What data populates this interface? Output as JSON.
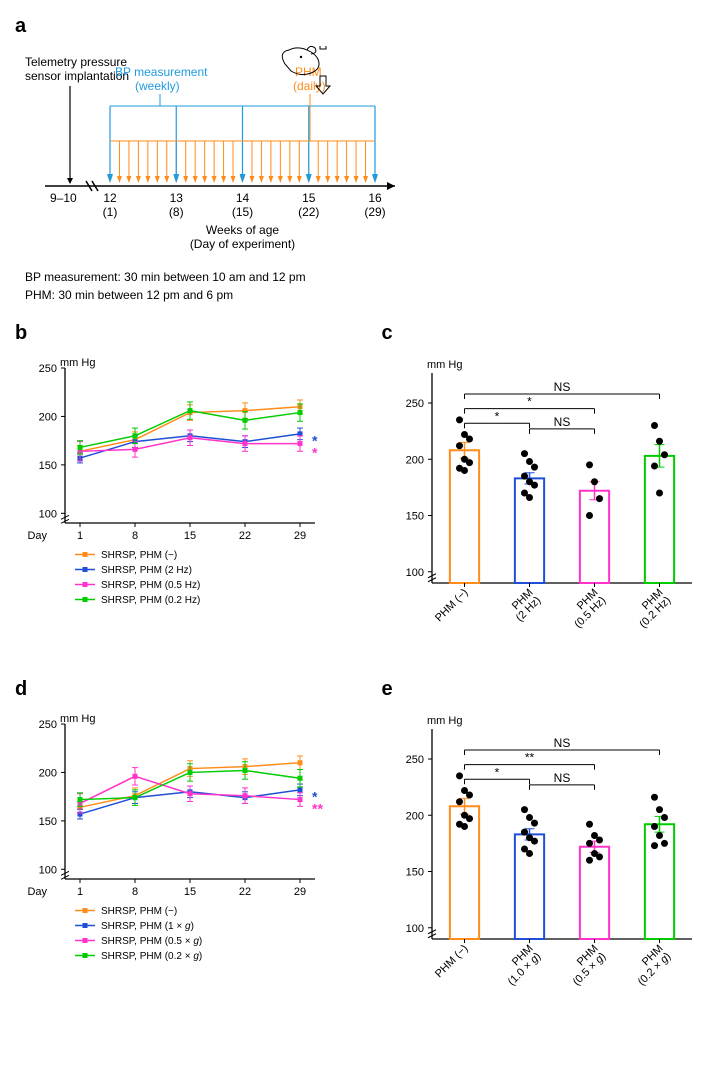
{
  "panelA": {
    "label": "a",
    "telemetry_label": "Telemetry pressure\nsensor implantation",
    "bp_label": "BP measurement\n(weekly)",
    "bp_color": "#1f9bdf",
    "phm_label": "PHM\n(daily)",
    "phm_color": "#ff8c1a",
    "start_range": "9–10",
    "weeks": [
      "12",
      "13",
      "14",
      "15",
      "16"
    ],
    "days": [
      "(1)",
      "(8)",
      "(15)",
      "(22)",
      "(29)"
    ],
    "xaxis_label1": "Weeks of age",
    "xaxis_label2": "(Day of experiment)",
    "note1": "BP measurement: 30 min between 10 am and 12 pm",
    "note2": "PHM: 30 min between 12 pm and 6 pm"
  },
  "panelB": {
    "label": "b",
    "ytitle": "mm Hg",
    "ylim": [
      0,
      250
    ],
    "yticks": [
      100,
      150,
      200,
      250
    ],
    "xlabel": "Day",
    "xticks": [
      1,
      8,
      15,
      22,
      29
    ],
    "series": [
      {
        "name": "SHRSP, PHM (−)",
        "color": "#ff8c1a",
        "y": [
          164,
          176,
          204,
          206,
          210
        ],
        "err": [
          6,
          8,
          8,
          8,
          7
        ]
      },
      {
        "name": "SHRSP, PHM (2 Hz)",
        "color": "#1f4fd6",
        "y": [
          157,
          174,
          180,
          174,
          182
        ],
        "err": [
          5,
          6,
          6,
          6,
          6
        ]
      },
      {
        "name": "SHRSP, PHM (0.5 Hz)",
        "color": "#ff33cc",
        "y": [
          164,
          166,
          178,
          172,
          172
        ],
        "err": [
          10,
          8,
          8,
          8,
          8
        ]
      },
      {
        "name": "SHRSP, PHM (0.2 Hz)",
        "color": "#00cc00",
        "y": [
          168,
          180,
          206,
          196,
          204
        ],
        "err": [
          7,
          8,
          9,
          9,
          9
        ]
      }
    ],
    "sig_markers": [
      {
        "text": "*",
        "color": "#1f4fd6"
      },
      {
        "text": "*",
        "color": "#ff33cc"
      }
    ]
  },
  "panelC": {
    "label": "c",
    "ytitle": "mm Hg",
    "ylim": [
      0,
      250
    ],
    "yticks": [
      100,
      150,
      200,
      250
    ],
    "bars": [
      {
        "xlabel": "PHM (−)",
        "color": "#ff8c1a",
        "mean": 208,
        "err": 7,
        "points": [
          235,
          222,
          218,
          212,
          200,
          197,
          192,
          190
        ]
      },
      {
        "xlabel": "PHM\n(2 Hz)",
        "color": "#1f4fd6",
        "mean": 183,
        "err": 5,
        "points": [
          205,
          198,
          193,
          185,
          180,
          177,
          170,
          166
        ]
      },
      {
        "xlabel": "PHM\n(0.5 Hz)",
        "color": "#ff33cc",
        "mean": 172,
        "err": 8,
        "points": [
          195,
          180,
          165,
          150
        ]
      },
      {
        "xlabel": "PHM\n(0.2 Hz)",
        "color": "#00cc00",
        "mean": 203,
        "err": 10,
        "points": [
          230,
          216,
          204,
          194,
          170
        ]
      }
    ],
    "sig_brackets": [
      {
        "from": 0,
        "to": 1,
        "y": 232,
        "label": "*"
      },
      {
        "from": 1,
        "to": 2,
        "y": 227,
        "label": "NS"
      },
      {
        "from": 0,
        "to": 2,
        "y": 245,
        "label": "*"
      },
      {
        "from": 0,
        "to": 3,
        "y": 258,
        "label": "NS"
      }
    ]
  },
  "panelD": {
    "label": "d",
    "ytitle": "mm Hg",
    "ylim": [
      0,
      250
    ],
    "yticks": [
      100,
      150,
      200,
      250
    ],
    "xlabel": "Day",
    "xticks": [
      1,
      8,
      15,
      22,
      29
    ],
    "series": [
      {
        "name": "SHRSP, PHM (−)",
        "color": "#ff8c1a",
        "y": [
          164,
          176,
          204,
          206,
          210
        ],
        "err": [
          6,
          8,
          8,
          8,
          7
        ]
      },
      {
        "name": "SHRSP, PHM (1 × g)",
        "color": "#1f4fd6",
        "y": [
          157,
          174,
          180,
          174,
          182
        ],
        "err": [
          5,
          6,
          6,
          6,
          6
        ]
      },
      {
        "name": "SHRSP, PHM (0.5 × g)",
        "color": "#ff33cc",
        "y": [
          168,
          196,
          178,
          176,
          172
        ],
        "err": [
          10,
          9,
          8,
          8,
          7
        ]
      },
      {
        "name": "SHRSP, PHM (0.2 × g)",
        "color": "#00cc00",
        "y": [
          172,
          174,
          200,
          202,
          194
        ],
        "err": [
          7,
          8,
          9,
          9,
          9
        ]
      }
    ],
    "sig_markers": [
      {
        "text": "*",
        "color": "#1f4fd6"
      },
      {
        "text": "**",
        "color": "#ff33cc"
      }
    ]
  },
  "panelE": {
    "label": "e",
    "ytitle": "mm Hg",
    "ylim": [
      0,
      250
    ],
    "yticks": [
      100,
      150,
      200,
      250
    ],
    "bars": [
      {
        "xlabel": "PHM (−)",
        "color": "#ff8c1a",
        "mean": 208,
        "err": 7,
        "points": [
          235,
          222,
          218,
          212,
          200,
          197,
          192,
          190
        ]
      },
      {
        "xlabel": "PHM\n(1.0 × g)",
        "color": "#1f4fd6",
        "mean": 183,
        "err": 5,
        "points": [
          205,
          198,
          193,
          185,
          180,
          177,
          170,
          166
        ]
      },
      {
        "xlabel": "PHM\n(0.5 × g)",
        "color": "#ff33cc",
        "mean": 172,
        "err": 5,
        "points": [
          192,
          182,
          178,
          175,
          166,
          163,
          160
        ]
      },
      {
        "xlabel": "PHM\n(0.2 × g)",
        "color": "#00cc00",
        "mean": 192,
        "err": 7,
        "points": [
          216,
          205,
          198,
          190,
          182,
          175,
          173
        ]
      }
    ],
    "sig_brackets": [
      {
        "from": 0,
        "to": 1,
        "y": 232,
        "label": "*"
      },
      {
        "from": 1,
        "to": 2,
        "y": 227,
        "label": "NS"
      },
      {
        "from": 0,
        "to": 2,
        "y": 245,
        "label": "**"
      },
      {
        "from": 0,
        "to": 3,
        "y": 258,
        "label": "NS"
      }
    ]
  },
  "style": {
    "axis_color": "#000000",
    "label_fontsize": 11,
    "tick_fontsize": 11,
    "legend_fontsize": 10,
    "line_width": 1.5,
    "marker_size": 5,
    "bar_width": 0.45,
    "dot_radius": 3.5,
    "bg": "#ffffff"
  },
  "italic_vars": {
    "g": "g"
  }
}
